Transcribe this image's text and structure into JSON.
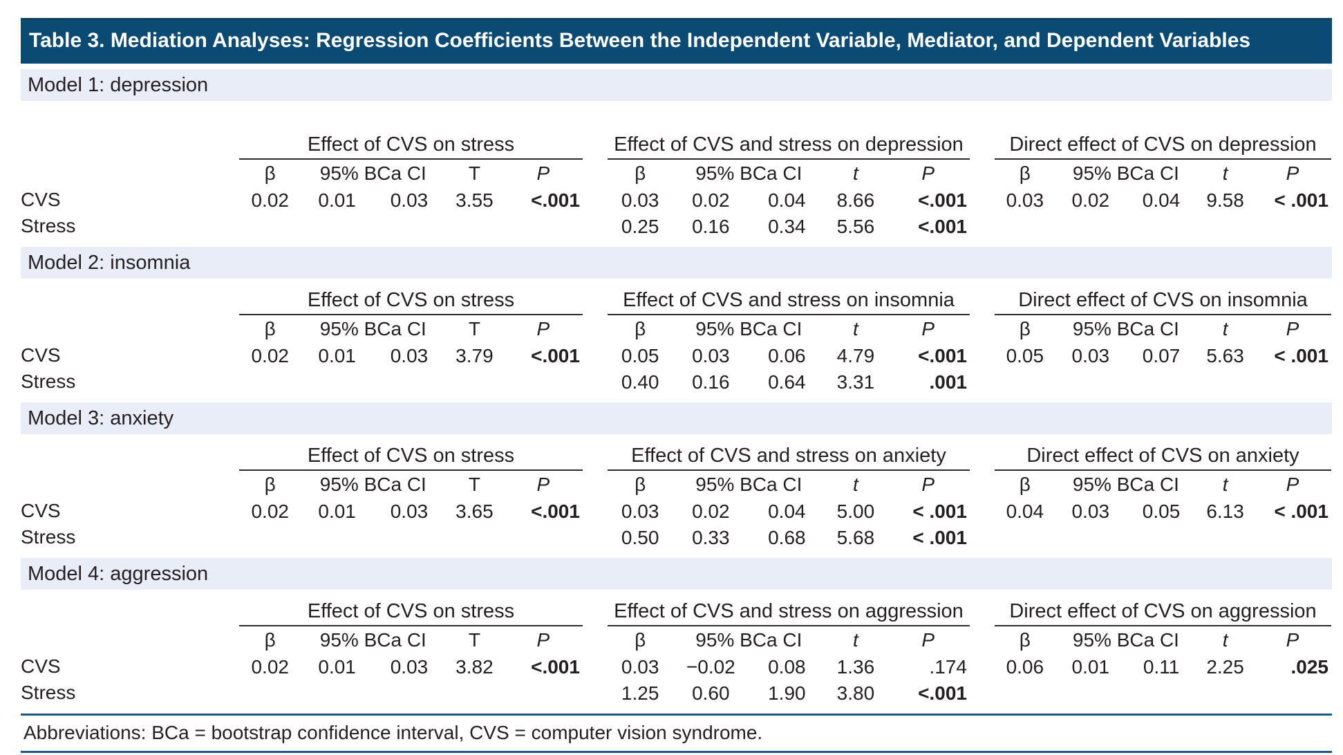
{
  "title": "Table 3. Mediation Analyses: Regression Coefficients Between the Independent Variable, Mediator, and Dependent Variables",
  "colors": {
    "header_bar": "#0b4a72",
    "section_band": "#e9edf8",
    "rule": "#1c5886"
  },
  "row_labels": [
    "CVS",
    "Stress"
  ],
  "models": [
    {
      "label": "Model 1: depression",
      "groups": [
        {
          "title": "Effect of CVS on stress",
          "col_beta": "β",
          "col_ci": "95% BCa CI",
          "col_stat": "T",
          "col_p": "P",
          "rows": [
            {
              "cells": [
                "0.02",
                "0.01",
                "0.03",
                "3.55",
                "<.001"
              ]
            },
            {
              "cells": [
                "",
                "",
                "",
                "",
                ""
              ]
            }
          ]
        },
        {
          "title": "Effect of CVS and stress on depression",
          "col_beta": "β",
          "col_ci": "95% BCa CI",
          "col_stat": "t",
          "col_p": "P",
          "rows": [
            {
              "cells": [
                "0.03",
                "0.02",
                "0.04",
                "8.66",
                "<.001"
              ]
            },
            {
              "cells": [
                "0.25",
                "0.16",
                "0.34",
                "5.56",
                "<.001"
              ]
            }
          ]
        },
        {
          "title": "Direct effect of CVS on depression",
          "col_beta": "β",
          "col_ci": "95% BCa CI",
          "col_stat": "t",
          "col_p": "P",
          "rows": [
            {
              "cells": [
                "0.03",
                "0.02",
                "0.04",
                "9.58",
                "< .001"
              ]
            },
            {
              "cells": [
                "",
                "",
                "",
                "",
                ""
              ]
            }
          ]
        }
      ]
    },
    {
      "label": "Model 2: insomnia",
      "groups": [
        {
          "title": "Effect of CVS on stress",
          "col_beta": "β",
          "col_ci": "95% BCa CI",
          "col_stat": "T",
          "col_p": "P",
          "rows": [
            {
              "cells": [
                "0.02",
                "0.01",
                "0.03",
                "3.79",
                "<.001"
              ]
            },
            {
              "cells": [
                "",
                "",
                "",
                "",
                ""
              ]
            }
          ]
        },
        {
          "title": "Effect of CVS and stress on insomnia",
          "col_beta": "β",
          "col_ci": "95% BCa CI",
          "col_stat": "t",
          "col_p": "P",
          "rows": [
            {
              "cells": [
                "0.05",
                "0.03",
                "0.06",
                "4.79",
                "<.001"
              ]
            },
            {
              "cells": [
                "0.40",
                "0.16",
                "0.64",
                "3.31",
                ".001"
              ]
            }
          ]
        },
        {
          "title": "Direct effect of CVS on insomnia",
          "col_beta": "β",
          "col_ci": "95% BCa CI",
          "col_stat": "t",
          "col_p": "P",
          "rows": [
            {
              "cells": [
                "0.05",
                "0.03",
                "0.07",
                "5.63",
                "< .001"
              ]
            },
            {
              "cells": [
                "",
                "",
                "",
                "",
                ""
              ]
            }
          ]
        }
      ]
    },
    {
      "label": "Model 3: anxiety",
      "groups": [
        {
          "title": "Effect of CVS on stress",
          "col_beta": "β",
          "col_ci": "95% BCa CI",
          "col_stat": "T",
          "col_p": "P",
          "rows": [
            {
              "cells": [
                "0.02",
                "0.01",
                "0.03",
                "3.65",
                "<.001"
              ]
            },
            {
              "cells": [
                "",
                "",
                "",
                "",
                ""
              ]
            }
          ]
        },
        {
          "title": "Effect of CVS and stress on anxiety",
          "col_beta": "β",
          "col_ci": "95% BCa CI",
          "col_stat": "t",
          "col_p": "P",
          "rows": [
            {
              "cells": [
                "0.03",
                "0.02",
                "0.04",
                "5.00",
                "< .001"
              ]
            },
            {
              "cells": [
                "0.50",
                "0.33",
                "0.68",
                "5.68",
                "< .001"
              ]
            }
          ]
        },
        {
          "title": "Direct effect of CVS on anxiety",
          "col_beta": "β",
          "col_ci": "95% BCa CI",
          "col_stat": "t",
          "col_p": "P",
          "rows": [
            {
              "cells": [
                "0.04",
                "0.03",
                "0.05",
                "6.13",
                "< .001"
              ]
            },
            {
              "cells": [
                "",
                "",
                "",
                "",
                ""
              ]
            }
          ]
        }
      ]
    },
    {
      "label": "Model 4: aggression",
      "groups": [
        {
          "title": "Effect of CVS on stress",
          "col_beta": "β",
          "col_ci": "95% BCa CI",
          "col_stat": "T",
          "col_p": "P",
          "rows": [
            {
              "cells": [
                "0.02",
                "0.01",
                "0.03",
                "3.82",
                "<.001"
              ]
            },
            {
              "cells": [
                "",
                "",
                "",
                "",
                ""
              ]
            }
          ]
        },
        {
          "title": "Effect of CVS and stress on aggression",
          "col_beta": "β",
          "col_ci": "95% BCa CI",
          "col_stat": "t",
          "col_p": "P",
          "rows": [
            {
              "cells": [
                "0.03",
                "−0.02",
                "0.08",
                "1.36",
                ".174"
              ]
            },
            {
              "cells": [
                "1.25",
                "0.60",
                "1.90",
                "3.80",
                "<.001"
              ]
            }
          ]
        },
        {
          "title": "Direct effect of CVS on aggression",
          "col_beta": "β",
          "col_ci": "95% BCa CI",
          "col_stat": "t",
          "col_p": "P",
          "rows": [
            {
              "cells": [
                "0.06",
                "0.01",
                "0.11",
                "2.25",
                ".025"
              ]
            },
            {
              "cells": [
                "",
                "",
                "",
                "",
                ""
              ]
            }
          ]
        }
      ]
    }
  ],
  "footer": {
    "abbreviations": "Abbreviations: BCa = bootstrap confidence interval, CVS = computer vision syndrome."
  }
}
